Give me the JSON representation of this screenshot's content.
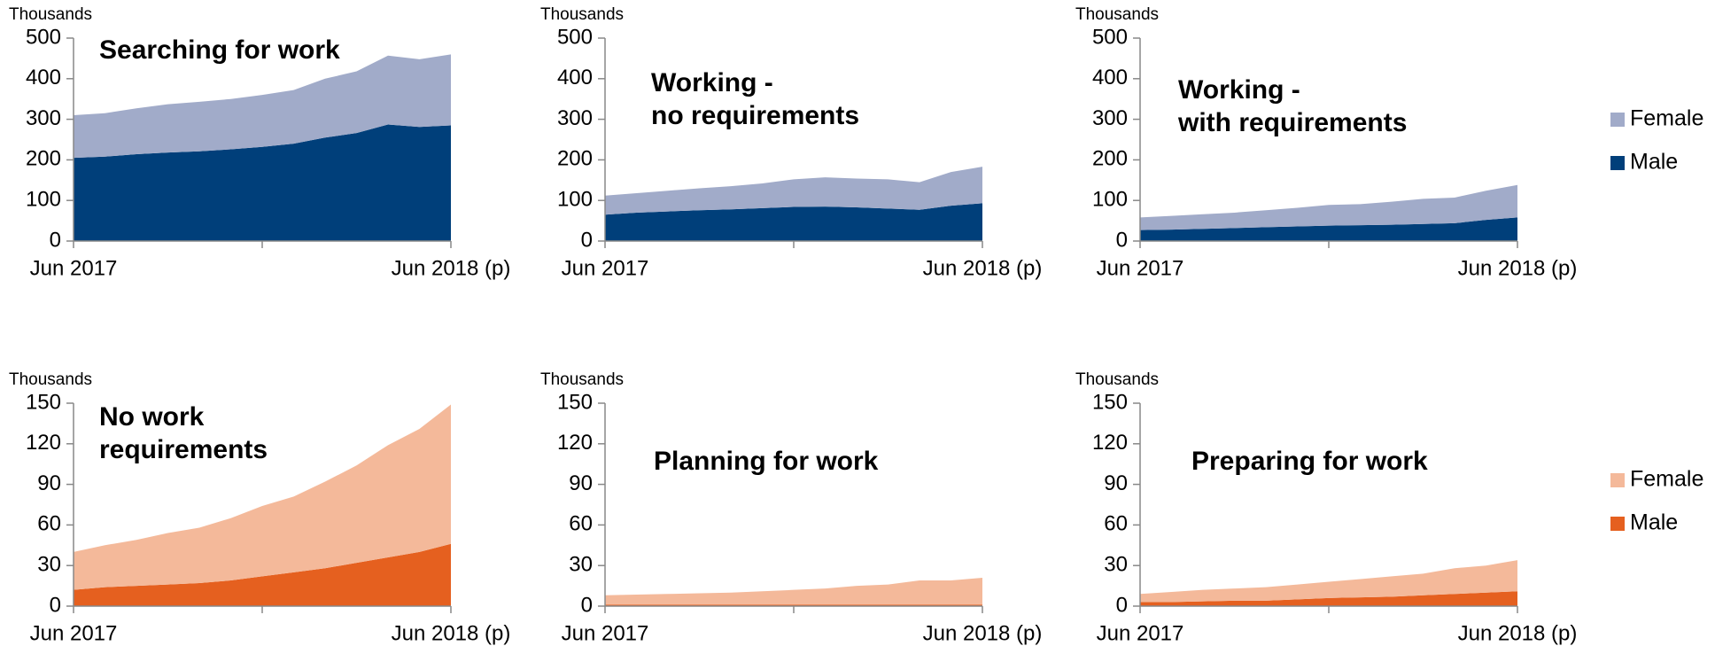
{
  "chart_data": [
    {
      "type": "area",
      "title": [
        "Searching for work"
      ],
      "y_label": "Thousands",
      "categories": [
        "Jun 2017",
        null,
        null,
        null,
        null,
        null,
        null,
        null,
        null,
        null,
        null,
        null,
        "Jun 2018 (p)"
      ],
      "series": [
        {
          "name": "Male",
          "color": "#003f7a",
          "values": [
            205,
            208,
            214,
            218,
            221,
            226,
            232,
            240,
            255,
            266,
            287,
            281,
            285
          ]
        },
        {
          "name": "Female",
          "color": "#a1abc9",
          "values": [
            105,
            107,
            113,
            119,
            122,
            124,
            128,
            132,
            145,
            152,
            170,
            167,
            175
          ]
        }
      ],
      "ylim": [
        0,
        500
      ],
      "yticks": [
        0,
        100,
        200,
        300,
        400,
        500
      ],
      "stacked": true
    },
    {
      "type": "area",
      "title": [
        "Working -",
        "no requirements"
      ],
      "y_label": "Thousands",
      "categories": [
        "Jun 2017",
        null,
        null,
        null,
        null,
        null,
        null,
        null,
        null,
        null,
        null,
        null,
        "Jun 2018 (p)"
      ],
      "series": [
        {
          "name": "Male",
          "color": "#003f7a",
          "values": [
            65,
            70,
            73,
            76,
            78,
            81,
            84,
            85,
            83,
            80,
            77,
            87,
            93
          ]
        },
        {
          "name": "Female",
          "color": "#a1abc9",
          "values": [
            47,
            48,
            51,
            54,
            57,
            61,
            68,
            72,
            71,
            72,
            68,
            83,
            90
          ]
        }
      ],
      "ylim": [
        0,
        500
      ],
      "yticks": [
        0,
        100,
        200,
        300,
        400,
        500
      ],
      "stacked": true
    },
    {
      "type": "area",
      "title": [
        "Working -",
        "with requirements"
      ],
      "y_label": "Thousands",
      "categories": [
        "Jun 2017",
        null,
        null,
        null,
        null,
        null,
        null,
        null,
        null,
        null,
        null,
        null,
        "Jun 2018 (p)"
      ],
      "series": [
        {
          "name": "Male",
          "color": "#003f7a",
          "values": [
            27,
            28,
            30,
            32,
            34,
            36,
            38,
            39,
            40,
            42,
            44,
            52,
            58
          ]
        },
        {
          "name": "Female",
          "color": "#a1abc9",
          "values": [
            31,
            34,
            36,
            38,
            42,
            46,
            51,
            52,
            57,
            62,
            63,
            72,
            80
          ]
        }
      ],
      "ylim": [
        0,
        500
      ],
      "yticks": [
        0,
        100,
        200,
        300,
        400,
        500
      ],
      "stacked": true,
      "legend": "right"
    },
    {
      "type": "area",
      "title": [
        "No work",
        "requirements"
      ],
      "y_label": "Thousands",
      "categories": [
        "Jun 2017",
        null,
        null,
        null,
        null,
        null,
        null,
        null,
        null,
        null,
        null,
        null,
        "Jun 2018 (p)"
      ],
      "series": [
        {
          "name": "Male",
          "color": "#e5601f",
          "values": [
            12,
            14,
            15,
            16,
            17,
            19,
            22,
            25,
            28,
            32,
            36,
            40,
            46
          ]
        },
        {
          "name": "Female",
          "color": "#f4b99a",
          "values": [
            28,
            31,
            34,
            38,
            41,
            46,
            52,
            56,
            64,
            72,
            83,
            91,
            103
          ]
        }
      ],
      "ylim": [
        0,
        150
      ],
      "yticks": [
        0,
        30,
        60,
        90,
        120,
        150
      ],
      "stacked": true
    },
    {
      "type": "area",
      "title": [
        "Planning for work"
      ],
      "y_label": "Thousands",
      "categories": [
        "Jun 2017",
        null,
        null,
        null,
        null,
        null,
        null,
        null,
        null,
        null,
        null,
        null,
        "Jun 2018 (p)"
      ],
      "series": [
        {
          "name": "Male",
          "color": "#e5601f",
          "values": [
            1,
            1,
            1,
            1,
            1,
            1,
            1,
            1,
            1,
            1,
            1,
            1,
            1
          ]
        },
        {
          "name": "Female",
          "color": "#f4b99a",
          "values": [
            7,
            7.5,
            8,
            8.5,
            9,
            10,
            11,
            12,
            14,
            15,
            18,
            18,
            20
          ]
        }
      ],
      "ylim": [
        0,
        150
      ],
      "yticks": [
        0,
        30,
        60,
        90,
        120,
        150
      ],
      "stacked": true
    },
    {
      "type": "area",
      "title": [
        "Preparing for work"
      ],
      "y_label": "Thousands",
      "categories": [
        "Jun 2017",
        null,
        null,
        null,
        null,
        null,
        null,
        null,
        null,
        null,
        null,
        null,
        "Jun 2018 (p)"
      ],
      "series": [
        {
          "name": "Male",
          "color": "#e5601f",
          "values": [
            3,
            3,
            3.5,
            4,
            4,
            5,
            6,
            6.5,
            7,
            8,
            9,
            10,
            11
          ]
        },
        {
          "name": "Female",
          "color": "#f4b99a",
          "values": [
            6,
            7.5,
            8.5,
            9,
            10,
            11,
            12,
            13.5,
            15,
            16,
            19,
            20,
            23
          ]
        }
      ],
      "ylim": [
        0,
        150
      ],
      "yticks": [
        0,
        30,
        60,
        90,
        120,
        150
      ],
      "stacked": true,
      "legend": "right"
    }
  ]
}
